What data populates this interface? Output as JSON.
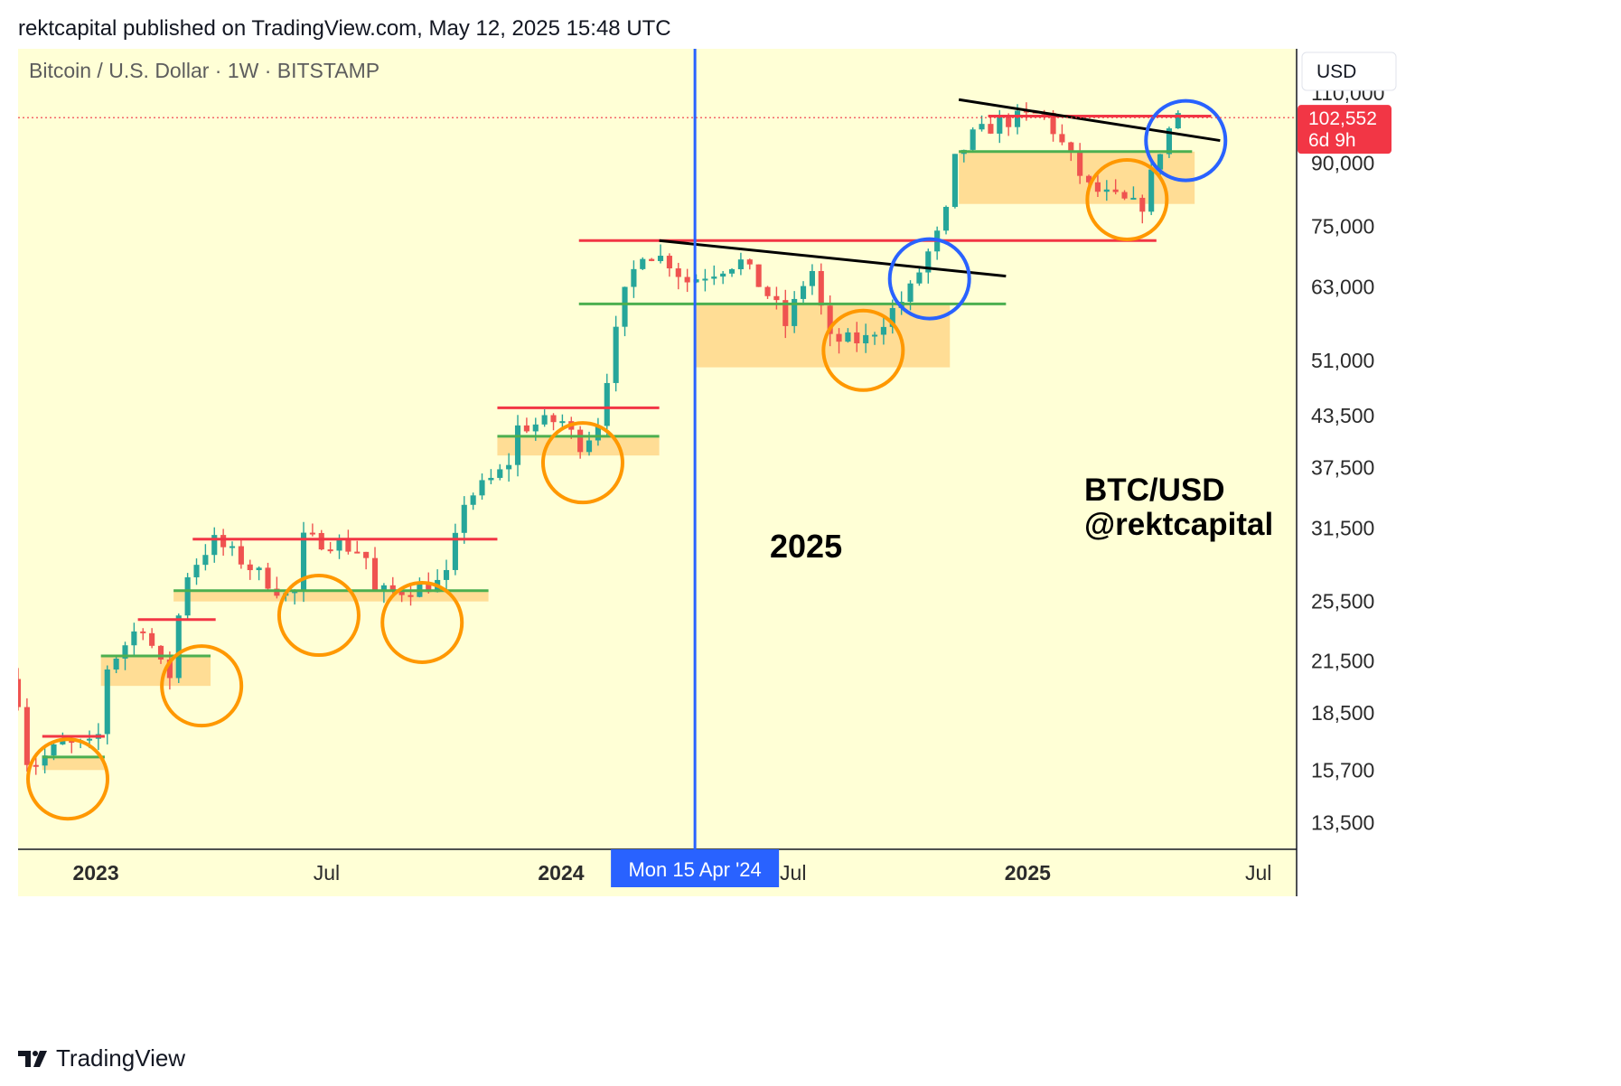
{
  "header": {
    "caption": "rektcapital published on TradingView.com, May 12, 2025 15:48 UTC"
  },
  "chart": {
    "symbol_title": "Bitcoin / U.S. Dollar · 1W · BITSTAMP",
    "currency_button": "USD",
    "price_badge": {
      "price": "102,552",
      "countdown": "6d 9h",
      "color": "#f23645"
    },
    "crosshair_date": "Mon 15 Apr '24",
    "annotation_year": "2025",
    "watermark_line1": "BTC/USD",
    "watermark_line2": "@rektcapital",
    "colors": {
      "background": "#ffffd6",
      "bull": "#26a69a",
      "bear": "#ef5350",
      "resistance": "#f23645",
      "support": "#4caf50",
      "zone": "#ffd78a",
      "circle_orange": "#ff9800",
      "circle_blue": "#2962ff",
      "crosshair": "#2962ff",
      "trendline": "#000000"
    }
  },
  "footer": {
    "brand": "TradingView",
    "logo_icon": "tradingview-logo-icon"
  },
  "chart_data": {
    "type": "candlestick",
    "scale": "log",
    "ylim": [
      12500,
      125000
    ],
    "xlim": [
      "2022-11-01",
      "2025-07-31"
    ],
    "y_ticks": [
      {
        "value": 110000,
        "label": "110,000"
      },
      {
        "value": 90000,
        "label": "90,000"
      },
      {
        "value": 75000,
        "label": "75,000"
      },
      {
        "value": 63000,
        "label": "63,000"
      },
      {
        "value": 51000,
        "label": "51,000"
      },
      {
        "value": 43500,
        "label": "43,500"
      },
      {
        "value": 37500,
        "label": "37,500"
      },
      {
        "value": 31500,
        "label": "31,500"
      },
      {
        "value": 25500,
        "label": "25,500"
      },
      {
        "value": 21500,
        "label": "21,500"
      },
      {
        "value": 18500,
        "label": "18,500"
      },
      {
        "value": 15700,
        "label": "15,700"
      },
      {
        "value": 13500,
        "label": "13,500"
      }
    ],
    "x_ticks": [
      {
        "date": "2023-01-01",
        "label": "2023",
        "bold": true
      },
      {
        "date": "2023-07-01",
        "label": "Jul",
        "bold": false
      },
      {
        "date": "2024-01-01",
        "label": "2024",
        "bold": true
      },
      {
        "date": "2024-07-01",
        "label": "Jul",
        "bold": false
      },
      {
        "date": "2025-01-01",
        "label": "2025",
        "bold": true
      },
      {
        "date": "2025-07-01",
        "label": "Jul",
        "bold": false
      }
    ],
    "last_price": 102552,
    "crosshair": "2024-04-15",
    "candles_path": [
      [
        "2022-11-01",
        20400
      ],
      [
        "2022-11-07",
        21000
      ],
      [
        "2022-11-10",
        16300
      ],
      [
        "2022-11-21",
        16000
      ],
      [
        "2022-12-12",
        16900
      ],
      [
        "2023-01-09",
        16800
      ],
      [
        "2023-01-16",
        21000
      ],
      [
        "2023-02-13",
        24000
      ],
      [
        "2023-03-06",
        20100
      ],
      [
        "2023-03-13",
        24000
      ],
      [
        "2023-03-20",
        27500
      ],
      [
        "2023-04-10",
        30400
      ],
      [
        "2023-05-01",
        28800
      ],
      [
        "2023-06-12",
        25500
      ],
      [
        "2023-06-19",
        30500
      ],
      [
        "2023-07-10",
        30300
      ],
      [
        "2023-08-07",
        29400
      ],
      [
        "2023-08-14",
        26100
      ],
      [
        "2023-09-11",
        26400
      ],
      [
        "2023-10-09",
        27000
      ],
      [
        "2023-10-16",
        29800
      ],
      [
        "2023-10-23",
        34000
      ],
      [
        "2023-11-27",
        37500
      ],
      [
        "2023-12-04",
        42000
      ],
      [
        "2024-01-08",
        43000
      ],
      [
        "2024-01-22",
        40000
      ],
      [
        "2024-02-05",
        42000
      ],
      [
        "2024-02-12",
        48000
      ],
      [
        "2024-02-26",
        61000
      ],
      [
        "2024-03-11",
        70000
      ],
      [
        "2024-04-01",
        68000
      ],
      [
        "2024-04-15",
        64000
      ],
      [
        "2024-05-27",
        68000
      ],
      [
        "2024-06-24",
        60000
      ],
      [
        "2024-07-01",
        56000
      ],
      [
        "2024-07-22",
        67000
      ],
      [
        "2024-08-05",
        54000
      ],
      [
        "2024-09-02",
        54000
      ],
      [
        "2024-10-07",
        62000
      ],
      [
        "2024-10-21",
        69000
      ],
      [
        "2024-11-04",
        76000
      ],
      [
        "2024-11-11",
        90000
      ],
      [
        "2024-11-25",
        97000
      ],
      [
        "2024-12-16",
        101000
      ],
      [
        "2025-01-20",
        104000
      ],
      [
        "2025-02-24",
        84000
      ],
      [
        "2025-03-10",
        82000
      ],
      [
        "2025-04-07",
        79000
      ],
      [
        "2025-04-21",
        93000
      ],
      [
        "2025-05-05",
        104000
      ]
    ],
    "levels": [
      {
        "kind": "resistance",
        "value": 103000,
        "from": "2024-12-01",
        "to": "2025-05-25"
      },
      {
        "kind": "support",
        "value": 93000,
        "from": "2024-11-08",
        "to": "2025-05-10"
      },
      {
        "kind": "resistance",
        "value": 72000,
        "from": "2024-01-15",
        "to": "2025-04-12"
      },
      {
        "kind": "support",
        "value": 60000,
        "from": "2024-01-15",
        "to": "2024-12-15"
      },
      {
        "kind": "resistance",
        "value": 44500,
        "from": "2023-11-12",
        "to": "2024-03-18"
      },
      {
        "kind": "support",
        "value": 41000,
        "from": "2023-11-12",
        "to": "2024-03-18"
      },
      {
        "kind": "resistance",
        "value": 30500,
        "from": "2023-03-18",
        "to": "2023-11-12"
      },
      {
        "kind": "support",
        "value": 26300,
        "from": "2023-03-03",
        "to": "2023-11-05"
      },
      {
        "kind": "resistance",
        "value": 24200,
        "from": "2023-02-03",
        "to": "2023-04-05"
      },
      {
        "kind": "support",
        "value": 21800,
        "from": "2023-01-05",
        "to": "2023-04-01"
      },
      {
        "kind": "resistance",
        "value": 17300,
        "from": "2022-11-20",
        "to": "2023-01-08"
      },
      {
        "kind": "support",
        "value": 16300,
        "from": "2022-11-20",
        "to": "2023-01-08"
      }
    ],
    "zones": [
      {
        "low": 80000,
        "high": 93000,
        "from": "2024-11-08",
        "to": "2025-05-12"
      },
      {
        "low": 50000,
        "high": 60000,
        "from": "2024-04-15",
        "to": "2024-11-01"
      },
      {
        "low": 38800,
        "high": 41000,
        "from": "2023-11-12",
        "to": "2024-03-18"
      },
      {
        "low": 25500,
        "high": 26300,
        "from": "2023-03-03",
        "to": "2023-11-05"
      },
      {
        "low": 20000,
        "high": 21800,
        "from": "2023-01-05",
        "to": "2023-04-01"
      },
      {
        "low": 15700,
        "high": 16300,
        "from": "2022-11-20",
        "to": "2023-01-08"
      }
    ],
    "trendlines": [
      {
        "from": [
          "2024-03-18",
          72000
        ],
        "to": [
          "2024-12-15",
          65000
        ]
      },
      {
        "from": [
          "2024-11-08",
          108000
        ],
        "to": [
          "2025-06-01",
          96000
        ]
      }
    ],
    "circles": [
      {
        "color": "orange",
        "date": "2022-12-10",
        "value": 15300
      },
      {
        "color": "orange",
        "date": "2023-03-25",
        "value": 20000
      },
      {
        "color": "orange",
        "date": "2023-06-25",
        "value": 24500
      },
      {
        "color": "orange",
        "date": "2023-09-14",
        "value": 24000
      },
      {
        "color": "orange",
        "date": "2024-01-18",
        "value": 38000
      },
      {
        "color": "orange",
        "date": "2024-08-25",
        "value": 52500
      },
      {
        "color": "orange",
        "date": "2025-03-20",
        "value": 81000
      },
      {
        "color": "blue",
        "date": "2024-10-16",
        "value": 64500
      },
      {
        "color": "blue",
        "date": "2025-05-05",
        "value": 96000
      }
    ]
  }
}
